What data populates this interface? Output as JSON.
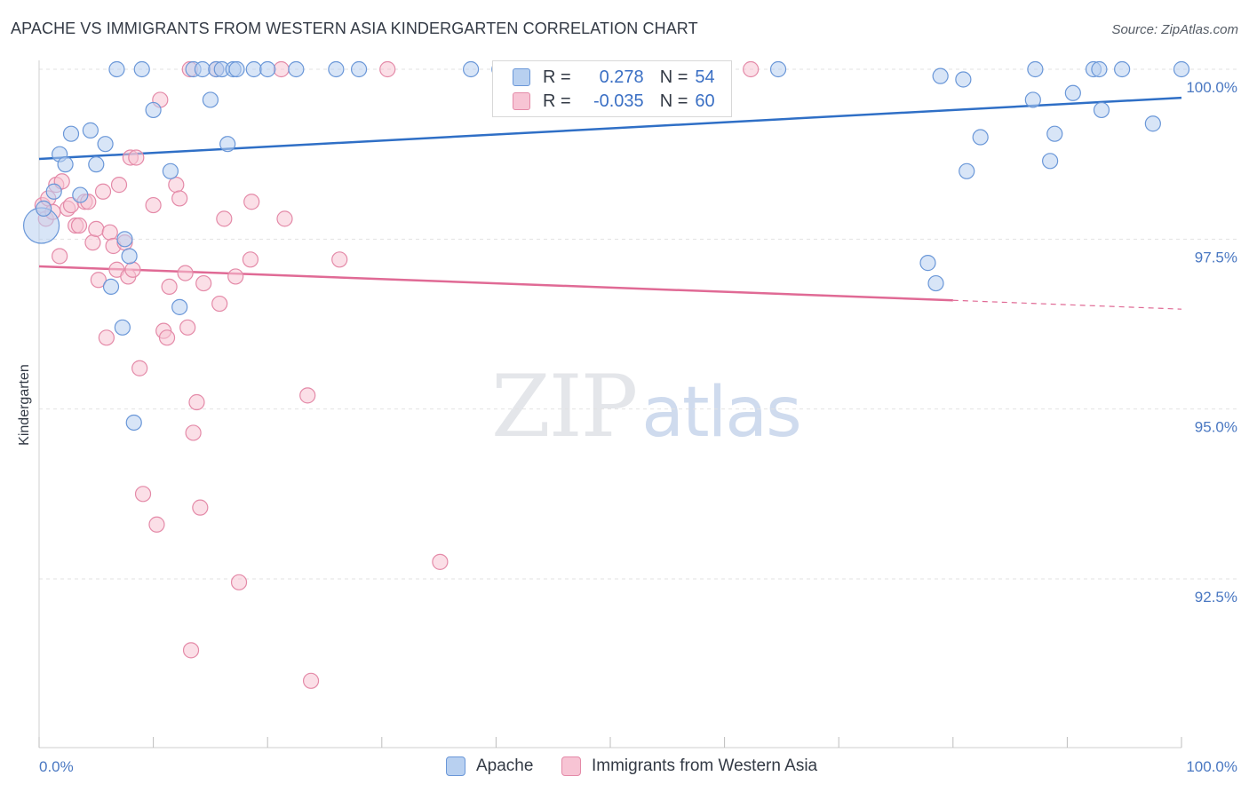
{
  "title": "APACHE VS IMMIGRANTS FROM WESTERN ASIA KINDERGARTEN CORRELATION CHART",
  "source": "Source: ZipAtlas.com",
  "watermark": {
    "zip": "ZIP",
    "atlas": "atlas"
  },
  "legend": {
    "r_label": "R =",
    "n_label": "N =",
    "series": [
      {
        "r": "0.278",
        "n": "54"
      },
      {
        "r": "-0.035",
        "n": "60"
      }
    ]
  },
  "colors": {
    "apache_fill": "#b8d0f0",
    "apache_stroke": "#6a97d8",
    "apache_line": "#2f6fc6",
    "wasia_fill": "#f7c4d4",
    "wasia_stroke": "#e48aa8",
    "wasia_line": "#e06a95"
  },
  "chart_data": {
    "type": "scatter",
    "title": "APACHE VS IMMIGRANTS FROM WESTERN ASIA KINDERGARTEN CORRELATION CHART",
    "xlabel": "",
    "ylabel": "Kindergarten",
    "xlim": [
      0,
      100
    ],
    "ylim": [
      90.3,
      100.4
    ],
    "x_tick_labels": [
      "0.0%",
      "100.0%"
    ],
    "y_ticks": [
      92.5,
      95.0,
      97.5,
      100.0
    ],
    "y_tick_labels": [
      "92.5%",
      "95.0%",
      "97.5%",
      "100.0%"
    ],
    "grid": true,
    "legend_position": "top-center",
    "series": [
      {
        "name": "Apache",
        "trend": [
          [
            0,
            98.68
          ],
          [
            100,
            99.58
          ]
        ],
        "points": [
          [
            0.2,
            97.7
          ],
          [
            0.4,
            97.95
          ],
          [
            1.3,
            98.2
          ],
          [
            1.8,
            98.75
          ],
          [
            2.3,
            98.6
          ],
          [
            2.8,
            99.05
          ],
          [
            3.6,
            98.15
          ],
          [
            4.5,
            99.1
          ],
          [
            5.0,
            98.6
          ],
          [
            5.8,
            98.9
          ],
          [
            6.3,
            96.8
          ],
          [
            7.3,
            96.2
          ],
          [
            7.5,
            97.5
          ],
          [
            7.9,
            97.25
          ],
          [
            8.3,
            94.8
          ],
          [
            6.8,
            100.0
          ],
          [
            9.0,
            100.0
          ],
          [
            10.0,
            99.4
          ],
          [
            11.5,
            98.5
          ],
          [
            12.3,
            96.5
          ],
          [
            13.5,
            100.0
          ],
          [
            14.3,
            100.0
          ],
          [
            15.0,
            99.55
          ],
          [
            15.5,
            100.0
          ],
          [
            16.0,
            100.0
          ],
          [
            16.5,
            98.9
          ],
          [
            17.0,
            100.0
          ],
          [
            17.3,
            100.0
          ],
          [
            18.8,
            100.0
          ],
          [
            20.0,
            100.0
          ],
          [
            22.5,
            100.0
          ],
          [
            26.0,
            100.0
          ],
          [
            28.0,
            100.0
          ],
          [
            37.8,
            100.0
          ],
          [
            40.3,
            100.0
          ],
          [
            43.0,
            100.0
          ],
          [
            64.7,
            100.0
          ],
          [
            77.8,
            97.15
          ],
          [
            78.5,
            96.85
          ],
          [
            78.9,
            99.9
          ],
          [
            80.9,
            99.85
          ],
          [
            81.2,
            98.5
          ],
          [
            82.4,
            99.0
          ],
          [
            87.0,
            99.55
          ],
          [
            87.2,
            100.0
          ],
          [
            88.5,
            98.65
          ],
          [
            88.9,
            99.05
          ],
          [
            90.5,
            99.65
          ],
          [
            92.3,
            100.0
          ],
          [
            92.8,
            100.0
          ],
          [
            93.0,
            99.4
          ],
          [
            94.8,
            100.0
          ],
          [
            97.5,
            99.2
          ],
          [
            100.0,
            100.0
          ]
        ]
      },
      {
        "name": "Immigrants from Western Asia",
        "trend": [
          [
            0,
            97.1
          ],
          [
            80,
            96.6
          ],
          [
            100,
            96.47
          ]
        ],
        "points": [
          [
            0.3,
            98.0
          ],
          [
            0.6,
            97.8
          ],
          [
            0.8,
            98.1
          ],
          [
            1.2,
            97.9
          ],
          [
            1.5,
            98.3
          ],
          [
            1.8,
            97.25
          ],
          [
            2.0,
            98.35
          ],
          [
            2.5,
            97.95
          ],
          [
            2.8,
            98.0
          ],
          [
            3.2,
            97.7
          ],
          [
            3.5,
            97.7
          ],
          [
            4.0,
            98.05
          ],
          [
            4.3,
            98.05
          ],
          [
            4.7,
            97.45
          ],
          [
            5.0,
            97.65
          ],
          [
            5.2,
            96.9
          ],
          [
            5.6,
            98.2
          ],
          [
            5.9,
            96.05
          ],
          [
            6.2,
            97.6
          ],
          [
            6.5,
            97.4
          ],
          [
            6.8,
            97.05
          ],
          [
            7.0,
            98.3
          ],
          [
            7.5,
            97.45
          ],
          [
            7.8,
            96.95
          ],
          [
            8.0,
            98.7
          ],
          [
            8.2,
            97.05
          ],
          [
            8.5,
            98.7
          ],
          [
            8.8,
            95.6
          ],
          [
            9.1,
            93.75
          ],
          [
            10.0,
            98.0
          ],
          [
            10.3,
            93.3
          ],
          [
            10.6,
            99.55
          ],
          [
            10.9,
            96.15
          ],
          [
            11.2,
            96.05
          ],
          [
            11.4,
            96.8
          ],
          [
            12.0,
            98.3
          ],
          [
            12.3,
            98.1
          ],
          [
            12.8,
            97.0
          ],
          [
            13.2,
            100.0
          ],
          [
            13.5,
            94.65
          ],
          [
            13.8,
            95.1
          ],
          [
            14.1,
            93.55
          ],
          [
            14.4,
            96.85
          ],
          [
            15.5,
            100.0
          ],
          [
            15.8,
            96.55
          ],
          [
            16.2,
            97.8
          ],
          [
            17.2,
            96.95
          ],
          [
            18.5,
            97.2
          ],
          [
            18.6,
            98.05
          ],
          [
            17.5,
            92.45
          ],
          [
            13.3,
            91.45
          ],
          [
            21.2,
            100.0
          ],
          [
            21.5,
            97.8
          ],
          [
            23.5,
            95.2
          ],
          [
            23.8,
            91.0
          ],
          [
            26.3,
            97.2
          ],
          [
            30.5,
            100.0
          ],
          [
            35.1,
            92.75
          ],
          [
            62.3,
            100.0
          ],
          [
            13.0,
            96.2
          ]
        ]
      }
    ]
  },
  "bottom_legend": [
    "Apache",
    "Immigrants from Western Asia"
  ]
}
